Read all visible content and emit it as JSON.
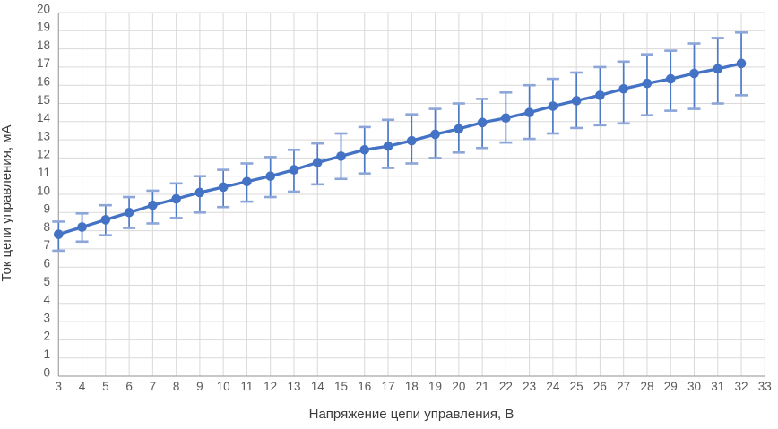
{
  "chart_data": {
    "type": "line",
    "title": "",
    "xlabel": "Напряжение цепи управления, В",
    "ylabel": "Ток цепи управления, мА",
    "x": [
      3,
      4,
      5,
      6,
      7,
      8,
      9,
      10,
      11,
      12,
      13,
      14,
      15,
      16,
      17,
      18,
      19,
      20,
      21,
      22,
      23,
      24,
      25,
      26,
      27,
      28,
      29,
      30,
      31,
      32
    ],
    "series": [
      {
        "name": "Ток цепи управления",
        "values": [
          7.8,
          8.2,
          8.6,
          9.0,
          9.4,
          9.75,
          10.1,
          10.4,
          10.7,
          11.0,
          11.35,
          11.75,
          12.1,
          12.45,
          12.65,
          12.95,
          13.3,
          13.6,
          13.95,
          14.2,
          14.5,
          14.85,
          15.15,
          15.45,
          15.8,
          16.1,
          16.35,
          16.65,
          16.9,
          17.2
        ],
        "error_low": [
          6.9,
          7.4,
          7.75,
          8.15,
          8.4,
          8.7,
          9.0,
          9.3,
          9.6,
          9.85,
          10.15,
          10.55,
          10.85,
          11.15,
          11.45,
          11.7,
          12.0,
          12.3,
          12.55,
          12.85,
          13.05,
          13.35,
          13.65,
          13.8,
          13.9,
          14.35,
          14.6,
          14.7,
          15.0,
          15.45
        ],
        "error_high": [
          8.5,
          8.95,
          9.4,
          9.85,
          10.2,
          10.6,
          11.0,
          11.35,
          11.7,
          12.05,
          12.45,
          12.8,
          13.35,
          13.7,
          14.1,
          14.4,
          14.7,
          15.0,
          15.25,
          15.6,
          16.0,
          16.35,
          16.7,
          17.0,
          17.3,
          17.7,
          17.9,
          18.3,
          18.6,
          18.9
        ]
      }
    ],
    "xlim": [
      3,
      33
    ],
    "ylim": [
      0,
      20
    ],
    "x_ticks": [
      3,
      4,
      5,
      6,
      7,
      8,
      9,
      10,
      11,
      12,
      13,
      14,
      15,
      16,
      17,
      18,
      19,
      20,
      21,
      22,
      23,
      24,
      25,
      26,
      27,
      28,
      29,
      30,
      31,
      32,
      33
    ],
    "y_ticks": [
      0,
      1,
      2,
      3,
      4,
      5,
      6,
      7,
      8,
      9,
      10,
      11,
      12,
      13,
      14,
      15,
      16,
      17,
      18,
      19,
      20
    ],
    "grid": "both",
    "legend": "none",
    "colors": {
      "series": "#4472C4",
      "error_whisker": "#4D79C5",
      "error_cap": "#8CA6D9",
      "gridline": "#D9D9D9",
      "axis_line": "#A6A6A6",
      "tick_label": "#595959",
      "axis_title": "#3B3B3B",
      "background": "#FFFFFF"
    }
  }
}
